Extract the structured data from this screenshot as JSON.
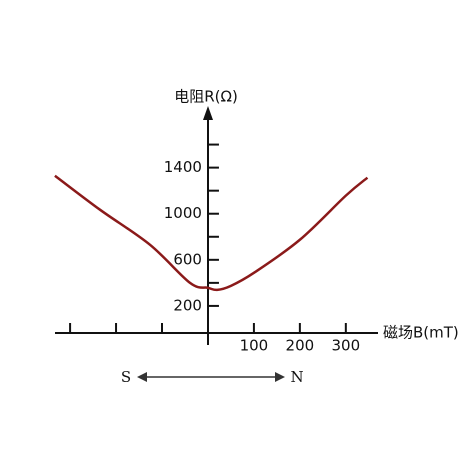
{
  "chart_data": {
    "type": "line",
    "x_label": "磁场B(mT)",
    "y_label": "电阻R(Ω)",
    "annotations": [
      "S",
      "N"
    ],
    "x": [
      -333,
      -235,
      -126,
      -39,
      0,
      20,
      50,
      100,
      200,
      300,
      347
    ],
    "series": [
      {
        "color": "#8b1a1a",
        "values": [
          1330,
          1035,
          730,
          400,
          357,
          339,
          374,
          487,
          774,
          1157,
          1313
        ]
      }
    ],
    "xlim": [
      -335,
      370
    ],
    "ylim": [
      -35,
      1900
    ],
    "xticks": [
      {
        "value": -300,
        "label": null
      },
      {
        "value": -200,
        "label": null
      },
      {
        "value": -100,
        "label": null
      },
      100,
      200,
      300
    ],
    "yticks": [
      200,
      {
        "value": 400,
        "label": null
      },
      600,
      {
        "value": 800,
        "label": null
      },
      1000,
      {
        "value": 1200,
        "label": null
      },
      1400,
      {
        "value": 1600,
        "label": null
      }
    ]
  }
}
